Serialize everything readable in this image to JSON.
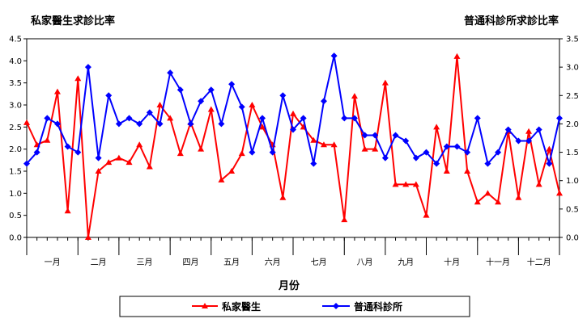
{
  "chart_data": {
    "type": "line",
    "left_axis_title": "私家醫生求診比率",
    "right_axis_title": "普通科診所求診比率",
    "xlabel": "月份",
    "left_ylim": [
      0,
      4.5
    ],
    "left_yticks": [
      "0.0",
      "0.5",
      "1.0",
      "1.5",
      "2.0",
      "2.5",
      "3.0",
      "3.5",
      "4.0",
      "4.5"
    ],
    "right_ylim": [
      0,
      3.5
    ],
    "right_yticks": [
      "0.0",
      "0.5",
      "1.0",
      "1.5",
      "2.0",
      "2.5",
      "3.0",
      "3.5"
    ],
    "months": [
      "一月",
      "二月",
      "三月",
      "四月",
      "五月",
      "六月",
      "七月",
      "八月",
      "九月",
      "十月",
      "十一月",
      "十二月"
    ],
    "month_boundaries": [
      0,
      5,
      9,
      14,
      18,
      22,
      26,
      31,
      35,
      39,
      44,
      48,
      52
    ],
    "grid": false,
    "legend_position": "bottom",
    "series": [
      {
        "name": "私家醫生",
        "axis": "left",
        "color": "#ff0000",
        "marker": "triangle",
        "values": [
          2.6,
          2.1,
          2.2,
          3.3,
          0.6,
          3.6,
          0.0,
          1.5,
          1.7,
          1.8,
          1.7,
          2.1,
          1.6,
          3.0,
          2.7,
          1.9,
          2.6,
          2.0,
          2.9,
          1.3,
          1.5,
          1.9,
          3.0,
          2.5,
          2.1,
          0.9,
          2.8,
          2.5,
          2.2,
          2.1,
          2.1,
          0.4,
          3.2,
          2.0,
          2.0,
          3.5,
          1.2,
          1.2,
          1.2,
          0.5,
          2.5,
          1.5,
          4.1,
          1.5,
          0.8,
          1.0,
          0.8,
          2.4,
          0.9,
          2.4,
          1.2,
          2.0,
          1.0
        ]
      },
      {
        "name": "普通科診所",
        "axis": "right",
        "color": "#0000ff",
        "marker": "diamond",
        "values": [
          1.3,
          1.5,
          2.1,
          2.0,
          1.6,
          1.5,
          3.0,
          1.4,
          2.5,
          2.0,
          2.1,
          2.0,
          2.2,
          2.0,
          2.9,
          2.6,
          2.0,
          2.4,
          2.6,
          2.0,
          2.7,
          2.3,
          1.5,
          2.1,
          1.5,
          2.5,
          1.9,
          2.1,
          1.3,
          2.4,
          3.2,
          2.1,
          2.1,
          1.8,
          1.8,
          1.4,
          1.8,
          1.7,
          1.4,
          1.5,
          1.3,
          1.6,
          1.6,
          1.5,
          2.1,
          1.3,
          1.5,
          1.9,
          1.7,
          1.7,
          1.9,
          1.3,
          2.1
        ]
      }
    ]
  }
}
